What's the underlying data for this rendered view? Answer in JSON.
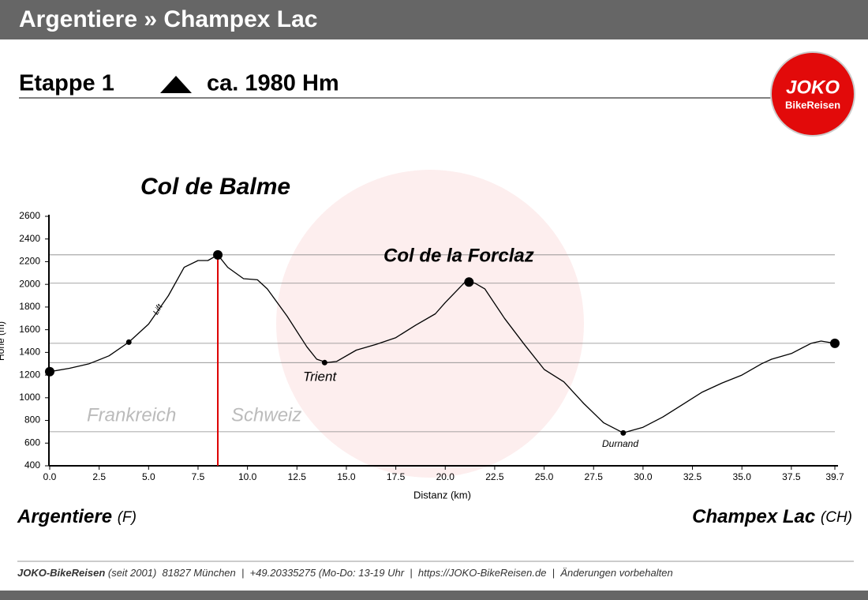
{
  "header": {
    "title": "Argentiere » Champex Lac",
    "stage": "Etappe 1",
    "ascent": "ca. 1980 Hm"
  },
  "logo": {
    "brand": "JOKO",
    "sub": "BikeReisen"
  },
  "start": {
    "name": "Argentiere",
    "country": "(F)"
  },
  "end": {
    "name": "Champex Lac",
    "country": "(CH)"
  },
  "footer": {
    "company": "JOKO-BikeReisen",
    "details": " (seit 2001)  81827 München  |  +49.20335275 (Mo-Do: 13-19 Uhr  |  https://JOKO-BikeReisen.de  |  Änderungen vorbehalten"
  },
  "chart_data": {
    "type": "line",
    "color": "#000000",
    "x_label": "Distanz   (km)",
    "y_label": "Höhe (m)",
    "x": [
      0,
      1,
      2,
      3,
      4,
      5,
      6,
      6.8,
      7.5,
      8,
      8.5,
      9,
      9.8,
      10.5,
      11,
      12,
      13,
      13.5,
      14,
      14.5,
      15.5,
      16.5,
      17.5,
      18.5,
      19.5,
      20,
      21,
      21.5,
      22,
      23,
      24,
      25,
      26,
      27,
      28,
      29,
      30,
      31,
      32,
      33,
      34,
      35,
      36,
      36.5,
      37.5,
      38.5,
      39,
      39.7
    ],
    "values": [
      1230,
      1260,
      1300,
      1370,
      1490,
      1650,
      1900,
      2150,
      2210,
      2210,
      2260,
      2150,
      2050,
      2040,
      1960,
      1720,
      1450,
      1340,
      1310,
      1320,
      1420,
      1470,
      1530,
      1640,
      1740,
      1840,
      2020,
      2010,
      1960,
      1700,
      1470,
      1250,
      1140,
      950,
      780,
      690,
      740,
      830,
      940,
      1050,
      1130,
      1200,
      1300,
      1340,
      1390,
      1480,
      1500,
      1480
    ],
    "xlim": [
      0,
      39.7
    ],
    "ylim": [
      400,
      2600
    ],
    "xticks": [
      {
        "value": 0,
        "label": "0.0"
      },
      2.5,
      {
        "value": 5,
        "label": "5.0"
      },
      7.5,
      {
        "value": 10,
        "label": "10.0"
      },
      12.5,
      {
        "value": 15,
        "label": "15.0"
      },
      17.5,
      {
        "value": 20,
        "label": "20.0"
      },
      22.5,
      {
        "value": 25,
        "label": "25.0"
      },
      27.5,
      {
        "value": 30,
        "label": "30.0"
      },
      32.5,
      {
        "value": 35,
        "label": "35.0"
      },
      37.5,
      39.7
    ],
    "yticks": [
      400,
      600,
      800,
      1000,
      1200,
      1400,
      1600,
      1800,
      2000,
      2200,
      2400,
      2600
    ],
    "grid": false,
    "reference_lines": [
      2260,
      2010,
      1480,
      1310,
      700
    ],
    "border_x": 8.5,
    "markers": [
      {
        "x": 0,
        "y": 1230,
        "size": "large"
      },
      {
        "x": 4,
        "y": 1490,
        "size": "small"
      },
      {
        "x": 8.5,
        "y": 2260,
        "size": "large"
      },
      {
        "x": 13.9,
        "y": 1310,
        "size": "small"
      },
      {
        "x": 21.2,
        "y": 2020,
        "size": "large"
      },
      {
        "x": 29,
        "y": 690,
        "size": "small"
      },
      {
        "x": 39.7,
        "y": 1480,
        "size": "large"
      }
    ],
    "annotations": [
      "Col de Balme",
      "Col de la Forclaz",
      "Trient",
      "Durnand",
      "Lift",
      "Frankreich",
      "Schweiz"
    ]
  }
}
